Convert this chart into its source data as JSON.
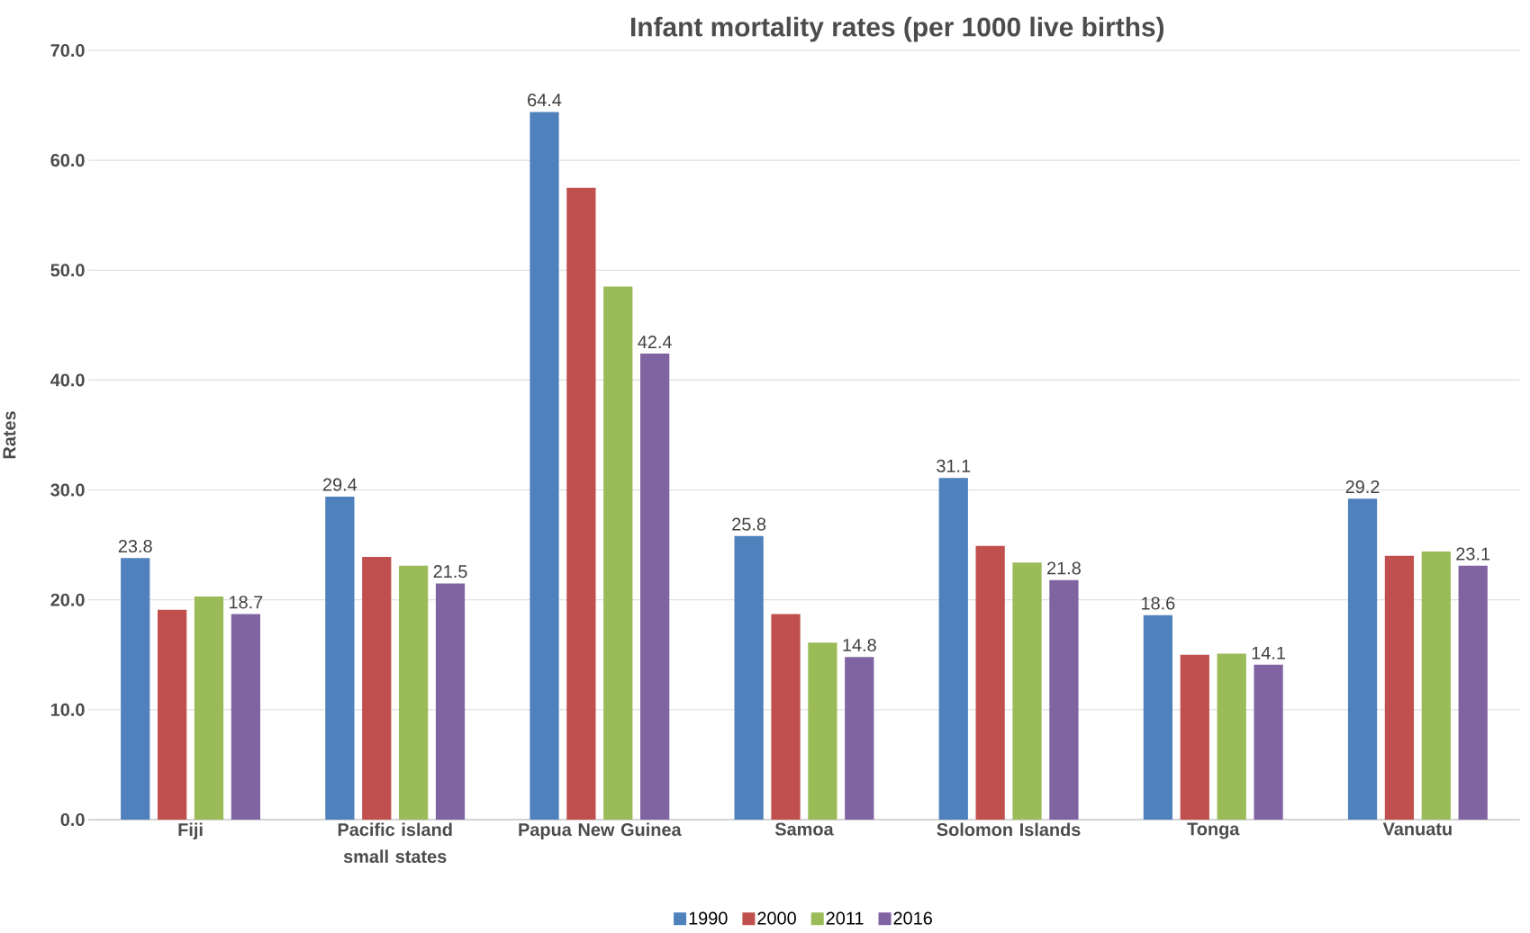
{
  "chart_data": {
    "type": "bar",
    "title": "Infant mortality rates (per 1000 live births)",
    "ylabel": "Rates",
    "categories": [
      "Fiji",
      "Pacific island small states",
      "Papua New Guinea",
      "Samoa",
      "Solomon Islands",
      "Tonga",
      "Vanuatu"
    ],
    "series": [
      {
        "name": "1990",
        "color": "#4f81bd",
        "values": [
          23.8,
          29.4,
          64.4,
          25.8,
          31.1,
          18.6,
          29.2
        ],
        "value_labels": [
          "23.8",
          "29.4",
          "64.4",
          "25.8",
          "31.1",
          "18.6",
          "29.2"
        ]
      },
      {
        "name": "2000",
        "color": "#c0504d",
        "values": [
          19.1,
          23.9,
          57.5,
          18.7,
          24.9,
          15.0,
          24.0
        ]
      },
      {
        "name": "2011",
        "color": "#9bbb59",
        "values": [
          20.3,
          23.1,
          48.5,
          16.1,
          23.4,
          15.1,
          24.4
        ]
      },
      {
        "name": "2016",
        "color": "#8064a2",
        "values": [
          18.7,
          21.5,
          42.4,
          14.8,
          21.8,
          14.1,
          23.1
        ],
        "value_labels": [
          "18.7",
          "21.5",
          "42.4",
          "14.8",
          "21.8",
          "14.1",
          "23.1"
        ]
      }
    ],
    "ylim": [
      0,
      70
    ],
    "yticks": [
      {
        "value": 0,
        "label": "0.0"
      },
      {
        "value": 10,
        "label": "10.0"
      },
      {
        "value": 20,
        "label": "20.0"
      },
      {
        "value": 30,
        "label": "30.0"
      },
      {
        "value": 40,
        "label": "40.0"
      },
      {
        "value": 50,
        "label": "50.0"
      },
      {
        "value": 60,
        "label": "60.0"
      },
      {
        "value": 70,
        "label": "70.0"
      }
    ],
    "grid": "y",
    "legend": "bottom"
  }
}
